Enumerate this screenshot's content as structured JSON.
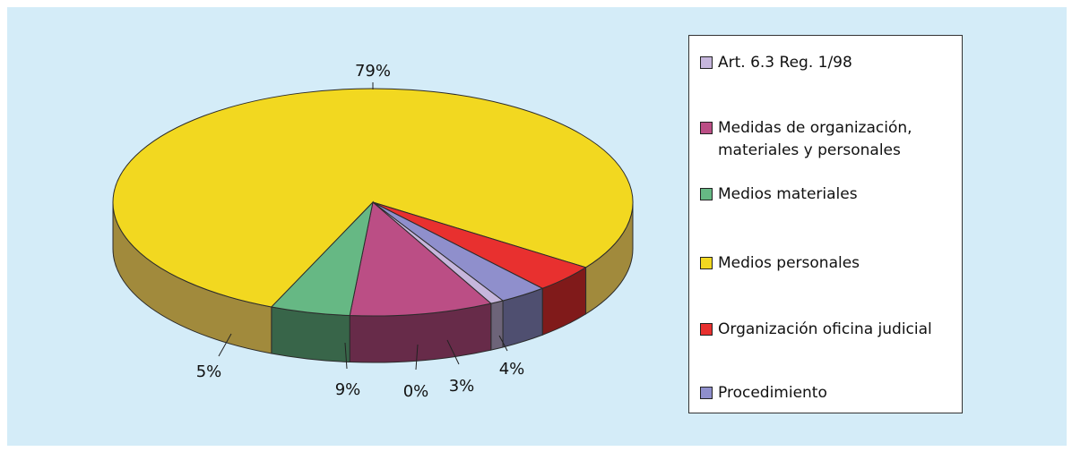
{
  "chart_data": {
    "type": "pie",
    "style": "3d",
    "slices": [
      {
        "label": "Art. 6.3 Reg. 1/98",
        "value": 0,
        "display": "0%",
        "color": "#c6b6dc"
      },
      {
        "label": "Medidas de organización, materiales y personales",
        "value": 9,
        "display": "9%",
        "color": "#bb4e85"
      },
      {
        "label": "Medios materiales",
        "value": 5,
        "display": "5%",
        "color": "#66b884"
      },
      {
        "label": "Medios personales",
        "value": 79,
        "display": "79%",
        "color": "#f2d820"
      },
      {
        "label": "Organización oficina judicial",
        "value": 4,
        "display": "4%",
        "color": "#e8302f"
      },
      {
        "label": "Procedimiento",
        "value": 3,
        "display": "3%",
        "color": "#8f8fcc"
      }
    ],
    "legend_position": "right"
  },
  "colors": {
    "background": "#d4ecf8"
  }
}
